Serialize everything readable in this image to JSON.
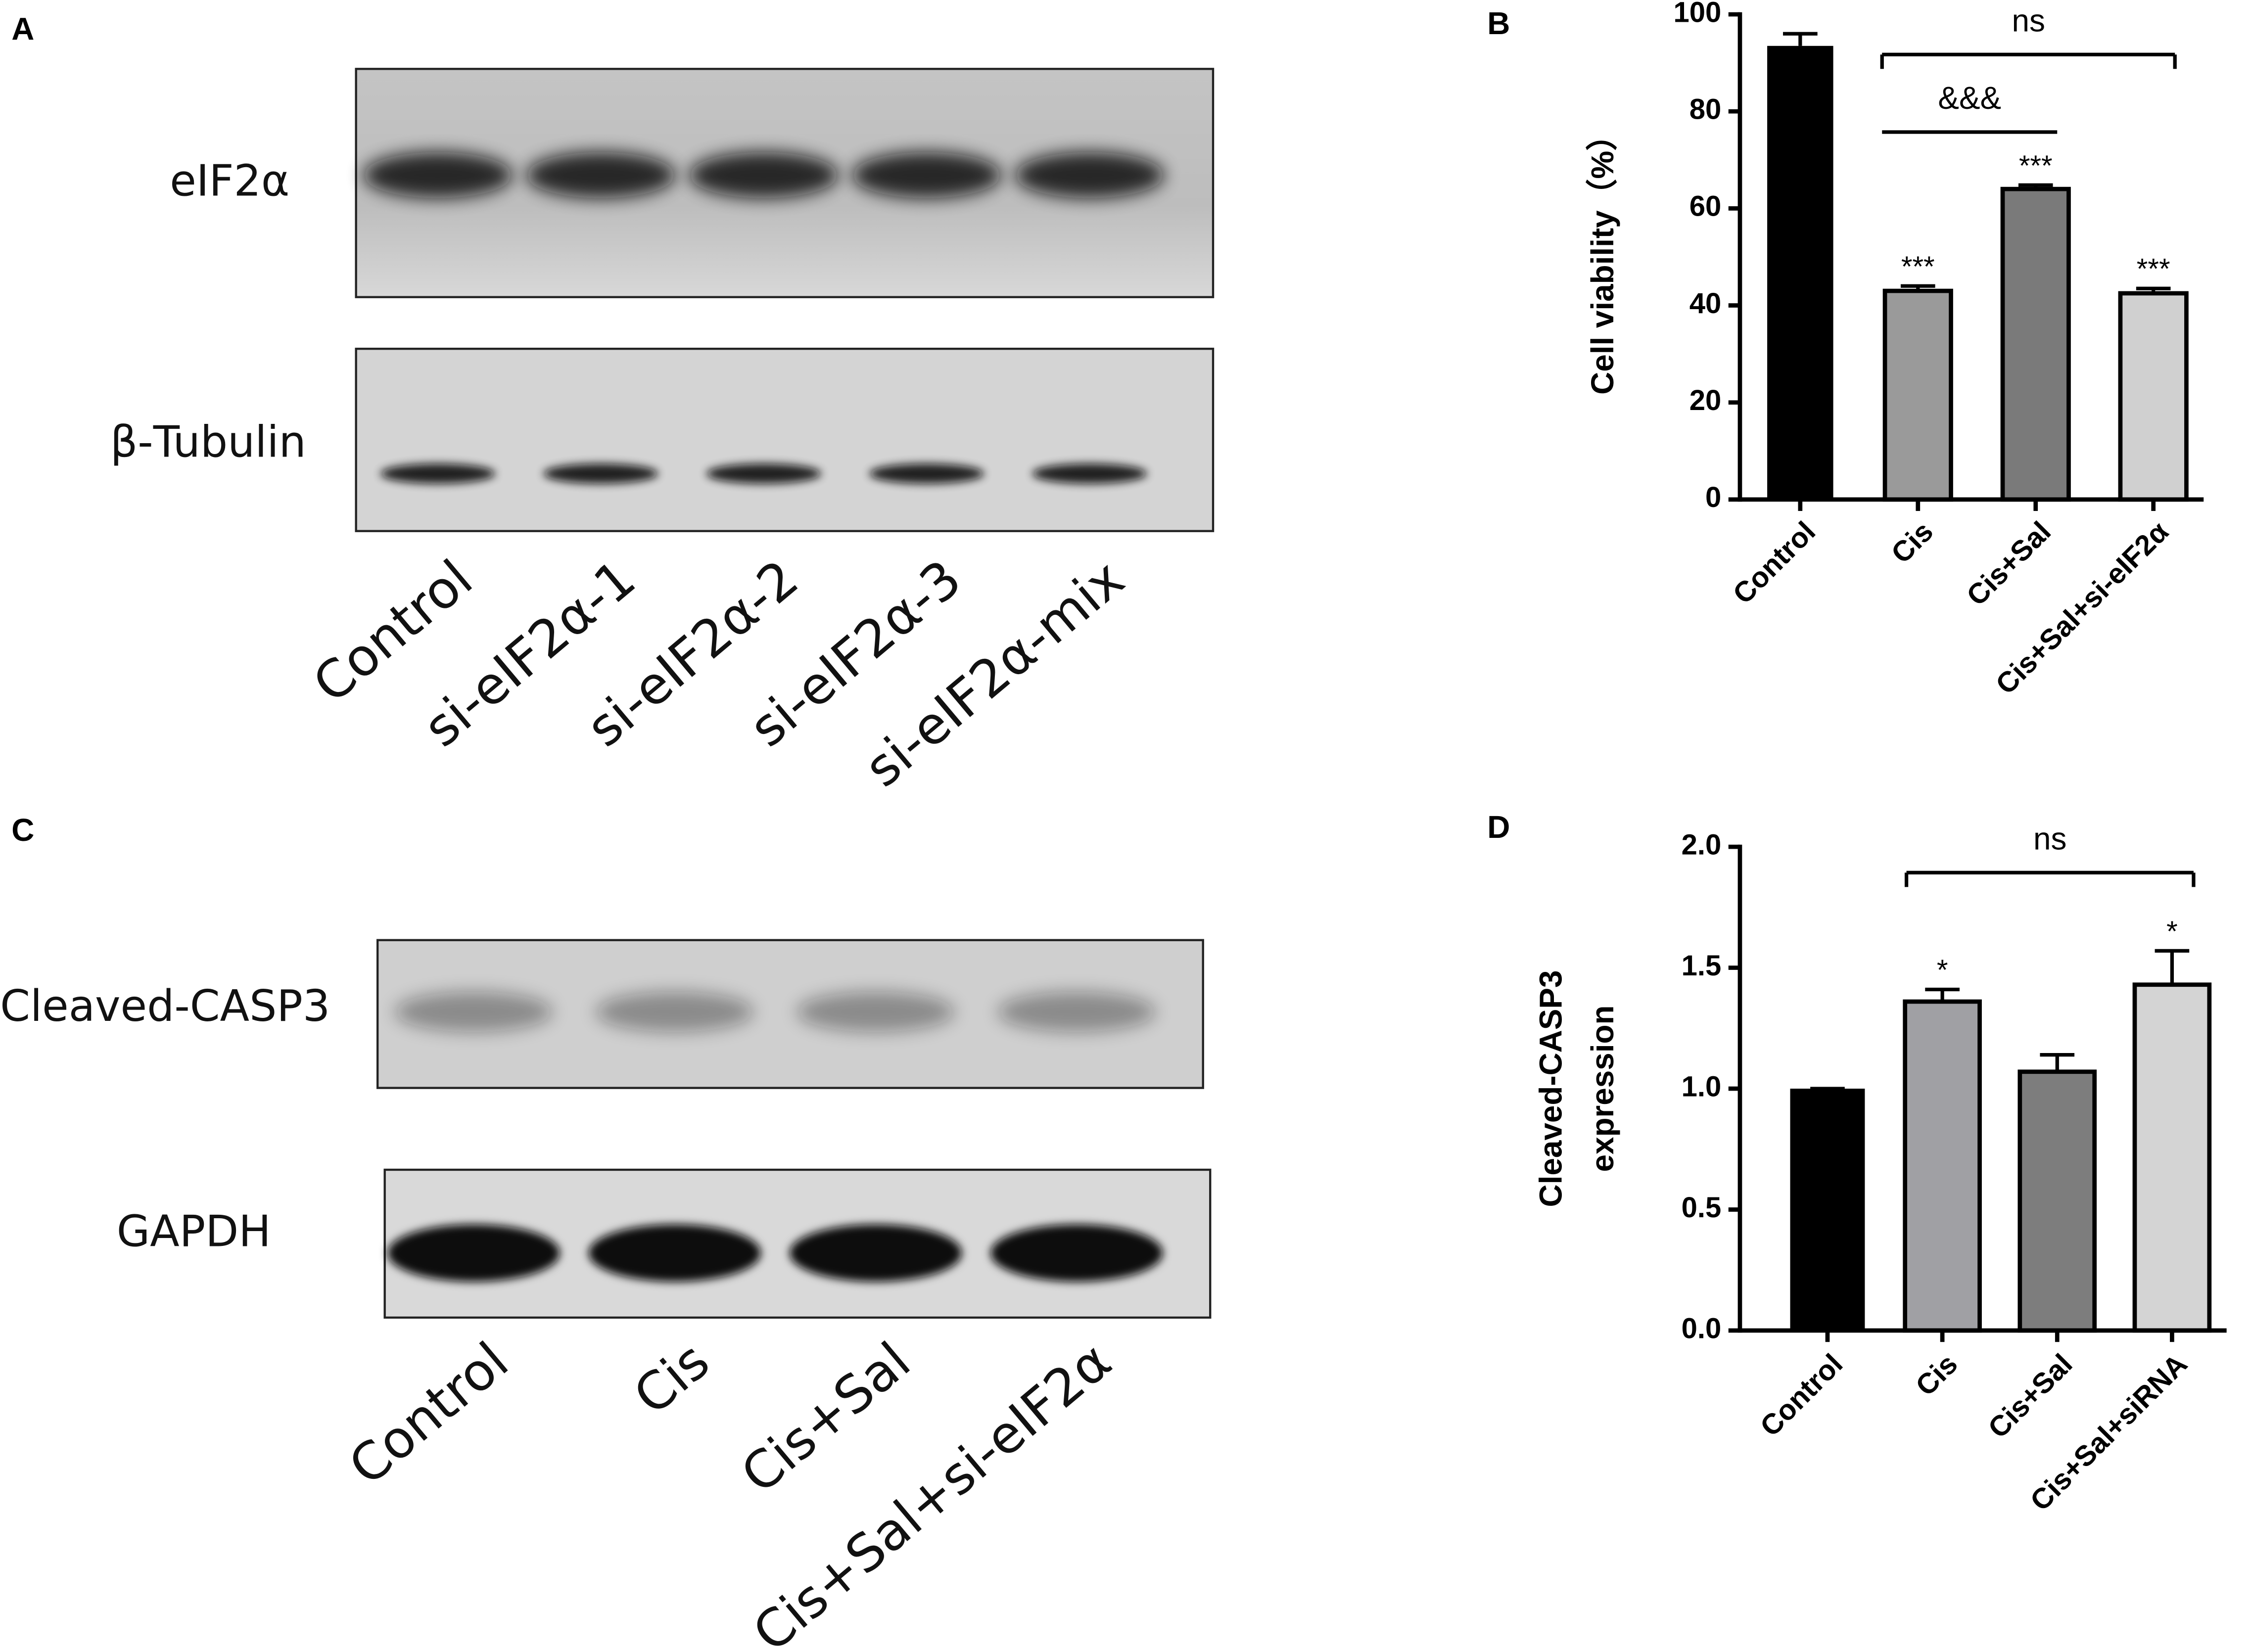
{
  "panels": [
    "A",
    "B",
    "C",
    "D"
  ],
  "blot_a": {
    "rows": [
      "eIF2α",
      "β-Tubulin"
    ],
    "lanes": [
      "Control",
      "si-eIF2α-1",
      "si-eIF2α-2",
      "si-eIF2α-3",
      "si-eIF2α-mix"
    ]
  },
  "blot_c": {
    "rows": [
      "Cleaved-CASP3",
      "GAPDH"
    ],
    "lanes": [
      "Control",
      "Cis",
      "Cis+Sal",
      "Cis+Sal+si-eIF2α"
    ]
  },
  "chart_data": [
    {
      "type": "bar",
      "ylabel": "Cell viability（%）",
      "categories": [
        "Control",
        "Cis",
        "Cis+Sal",
        "Cis+Sal+si-eIF2α"
      ],
      "values": [
        93.5,
        43,
        64,
        42.5
      ],
      "errors": [
        2.5,
        1,
        0.8,
        1
      ],
      "colors": [
        "#000000",
        "#9a9a9a",
        "#7a7a7a",
        "#d0d0d0"
      ],
      "ylim": [
        0,
        100
      ],
      "yticks": [
        0,
        20,
        40,
        60,
        80,
        100
      ],
      "bar_labels": [
        null,
        "***",
        "***",
        "***"
      ],
      "brackets": [
        {
          "text": "&&&",
          "from": 1,
          "to": 2,
          "end_ticks": false
        },
        {
          "text": "ns",
          "from": 1,
          "to": 3,
          "end_ticks": true
        }
      ]
    },
    {
      "type": "bar",
      "ylabel": [
        "Cleaved-CASP3",
        "expression"
      ],
      "categories": [
        "Control",
        "Cis",
        "Cis+Sal",
        "Cis+Sal+siRNA"
      ],
      "values": [
        1.0,
        1.36,
        1.07,
        1.43
      ],
      "errors": [
        0,
        0.05,
        0.07,
        0.14
      ],
      "colors": [
        "#000000",
        "#a0a0a4",
        "#7d7d7d",
        "#d4d4d4"
      ],
      "ylim": [
        0,
        2
      ],
      "yticks": [
        {
          "value": 0,
          "label": "0.0"
        },
        {
          "value": 0.5,
          "label": "0.5"
        },
        {
          "value": 1,
          "label": "1.0"
        },
        {
          "value": 1.5,
          "label": "1.5"
        },
        {
          "value": 2,
          "label": "2.0"
        }
      ],
      "bar_labels": [
        null,
        "*",
        null,
        "*"
      ],
      "brackets": [
        {
          "text": "ns",
          "from": 1,
          "to": 3,
          "end_ticks": true
        }
      ]
    }
  ]
}
